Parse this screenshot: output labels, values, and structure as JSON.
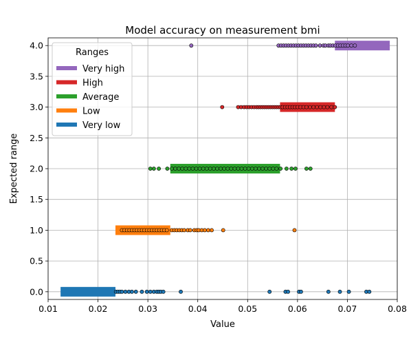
{
  "chart_data": {
    "type": "scatter",
    "title": "Model accuracy on measurement bmi",
    "xlabel": "Value",
    "ylabel": "Expected range",
    "xlim": [
      0.01,
      0.08
    ],
    "ylim": [
      -0.125,
      4.125
    ],
    "x_ticks": [
      "0.01",
      "0.02",
      "0.03",
      "0.04",
      "0.05",
      "0.06",
      "0.07",
      "0.08"
    ],
    "y_ticks": [
      "0.0",
      "0.5",
      "1.0",
      "1.5",
      "2.0",
      "2.5",
      "3.0",
      "3.5",
      "4.0"
    ],
    "grid": true,
    "legend_title": "Ranges",
    "legend_position": "upper-left",
    "series": [
      {
        "name": "Very high",
        "color": "#9467bd",
        "y": 4.0,
        "range": [
          0.0675,
          0.0785
        ],
        "points": [
          0.0387,
          0.0562,
          0.0567,
          0.0572,
          0.0577,
          0.0582,
          0.0587,
          0.0592,
          0.0597,
          0.0602,
          0.0607,
          0.0612,
          0.0617,
          0.0622,
          0.0627,
          0.0632,
          0.0637,
          0.0645,
          0.0652,
          0.0656,
          0.0662,
          0.0666,
          0.0671,
          0.0676,
          0.0681,
          0.0686,
          0.0691,
          0.0696,
          0.0701,
          0.0708,
          0.0715
        ]
      },
      {
        "name": "High",
        "color": "#d62728",
        "y": 3.0,
        "range": [
          0.0565,
          0.0675
        ],
        "points": [
          0.0449,
          0.0481,
          0.0487,
          0.0493,
          0.0498,
          0.0503,
          0.0508,
          0.0513,
          0.0518,
          0.0522,
          0.0526,
          0.053,
          0.0534,
          0.0538,
          0.0542,
          0.0546,
          0.055,
          0.0554,
          0.0558,
          0.0562,
          0.0566,
          0.057,
          0.0575,
          0.058,
          0.0585,
          0.059,
          0.0595,
          0.06,
          0.0606,
          0.0612,
          0.0618,
          0.0625,
          0.0632,
          0.0639,
          0.0646,
          0.0653,
          0.066,
          0.0668,
          0.0675
        ]
      },
      {
        "name": "Average",
        "color": "#2ca02c",
        "y": 2.0,
        "range": [
          0.0345,
          0.0565
        ],
        "points": [
          0.0305,
          0.0312,
          0.0322,
          0.0339,
          0.0348,
          0.0355,
          0.0362,
          0.0369,
          0.0376,
          0.0383,
          0.039,
          0.0397,
          0.0404,
          0.0411,
          0.0418,
          0.0425,
          0.0432,
          0.0439,
          0.0446,
          0.0453,
          0.046,
          0.0467,
          0.0474,
          0.0481,
          0.0488,
          0.0495,
          0.0502,
          0.0509,
          0.0516,
          0.0523,
          0.053,
          0.0537,
          0.0544,
          0.0551,
          0.0558,
          0.0566,
          0.0578,
          0.0588,
          0.0596,
          0.0618,
          0.0626
        ]
      },
      {
        "name": "Low",
        "color": "#ff7f0e",
        "y": 1.0,
        "range": [
          0.0235,
          0.0345
        ],
        "points": [
          0.0248,
          0.0253,
          0.0258,
          0.0263,
          0.0268,
          0.0273,
          0.0278,
          0.0283,
          0.0288,
          0.0293,
          0.0298,
          0.0303,
          0.0308,
          0.0313,
          0.0318,
          0.0323,
          0.0328,
          0.0333,
          0.0338,
          0.0348,
          0.0353,
          0.0358,
          0.0363,
          0.0368,
          0.0373,
          0.038,
          0.0385,
          0.0393,
          0.0398,
          0.0402,
          0.0408,
          0.0414,
          0.0421,
          0.0428,
          0.0451,
          0.0594
        ]
      },
      {
        "name": "Very low",
        "color": "#1f77b4",
        "y": 0.0,
        "range": [
          0.0125,
          0.0235
        ],
        "points": [
          0.0236,
          0.024,
          0.0244,
          0.0248,
          0.0255,
          0.0262,
          0.0268,
          0.0276,
          0.0288,
          0.0298,
          0.0305,
          0.0312,
          0.0318,
          0.0322,
          0.0326,
          0.0331,
          0.0366,
          0.0544,
          0.0576,
          0.0581,
          0.0603,
          0.0607,
          0.0662,
          0.0685,
          0.0703,
          0.0738,
          0.0744
        ]
      }
    ]
  }
}
